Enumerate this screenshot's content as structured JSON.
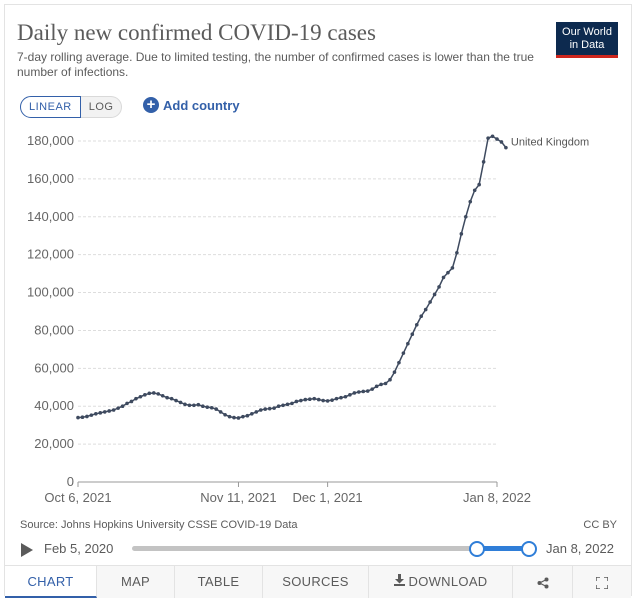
{
  "header": {
    "title": "Daily new confirmed COVID-19 cases",
    "subtitle": "7-day rolling average. Due to limited testing, the number of confirmed cases is lower than the true number of infections.",
    "logo_line1": "Our World",
    "logo_line2": "in Data"
  },
  "controls": {
    "linear_label": "LINEAR",
    "log_label": "LOG",
    "add_country_label": "Add country",
    "selected_scale": "linear"
  },
  "footer": {
    "source": "Source: Johns Hopkins University CSSE COVID-19 Data",
    "license": "CC BY"
  },
  "timeline": {
    "start_label": "Feb 5, 2020",
    "end_label": "Jan 8, 2022",
    "selected_start_fraction": 0.87,
    "selected_end_fraction": 1.0
  },
  "tabs": [
    {
      "label": "CHART",
      "active": true,
      "icon": ""
    },
    {
      "label": "MAP",
      "active": false,
      "icon": ""
    },
    {
      "label": "TABLE",
      "active": false,
      "icon": ""
    },
    {
      "label": "SOURCES",
      "active": false,
      "icon": ""
    },
    {
      "label": "DOWNLOAD",
      "active": false,
      "icon": "download-icon"
    },
    {
      "label": "",
      "active": false,
      "icon": "share-icon"
    },
    {
      "label": "",
      "active": false,
      "icon": "fullscreen-icon"
    }
  ],
  "colors": {
    "line": "#3e4a5f",
    "accent": "#3360a9",
    "logo_bg": "#0d2a4f",
    "logo_bar": "#ce261e",
    "timeline": "#2f7ed8"
  },
  "chart_data": {
    "type": "line",
    "title": "Daily new confirmed COVID-19 cases",
    "xlabel": "",
    "ylabel": "",
    "ylim": [
      0,
      180000
    ],
    "y_ticks": [
      0,
      20000,
      40000,
      60000,
      80000,
      100000,
      120000,
      140000,
      160000,
      180000
    ],
    "y_tick_labels": [
      "0",
      "20,000",
      "40,000",
      "60,000",
      "80,000",
      "100,000",
      "120,000",
      "140,000",
      "160,000",
      "180,000"
    ],
    "x_tick_labels": [
      {
        "date": "2021-10-06",
        "label": "Oct 6, 2021"
      },
      {
        "date": "2021-11-11",
        "label": "Nov 11, 2021"
      },
      {
        "date": "2021-12-01",
        "label": "Dec 1, 2021"
      },
      {
        "date": "2022-01-08",
        "label": "Jan 8, 2022"
      }
    ],
    "x_range": [
      "2021-10-06",
      "2022-01-08"
    ],
    "grid": "horizontal",
    "series": [
      {
        "name": "United Kingdom",
        "points": [
          [
            "2021-10-06",
            34000
          ],
          [
            "2021-10-07",
            34200
          ],
          [
            "2021-10-08",
            34600
          ],
          [
            "2021-10-09",
            35300
          ],
          [
            "2021-10-10",
            36000
          ],
          [
            "2021-10-11",
            36500
          ],
          [
            "2021-10-12",
            37000
          ],
          [
            "2021-10-13",
            37500
          ],
          [
            "2021-10-14",
            38000
          ],
          [
            "2021-10-15",
            39000
          ],
          [
            "2021-10-16",
            40000
          ],
          [
            "2021-10-17",
            41500
          ],
          [
            "2021-10-18",
            42500
          ],
          [
            "2021-10-19",
            44000
          ],
          [
            "2021-10-20",
            45000
          ],
          [
            "2021-10-21",
            46000
          ],
          [
            "2021-10-22",
            46800
          ],
          [
            "2021-10-23",
            47000
          ],
          [
            "2021-10-24",
            46500
          ],
          [
            "2021-10-25",
            45500
          ],
          [
            "2021-10-26",
            44500
          ],
          [
            "2021-10-27",
            44000
          ],
          [
            "2021-10-28",
            43000
          ],
          [
            "2021-10-29",
            42000
          ],
          [
            "2021-10-30",
            41000
          ],
          [
            "2021-10-31",
            40500
          ],
          [
            "2021-11-01",
            40500
          ],
          [
            "2021-11-02",
            40800
          ],
          [
            "2021-11-03",
            40000
          ],
          [
            "2021-11-04",
            39500
          ],
          [
            "2021-11-05",
            39200
          ],
          [
            "2021-11-06",
            38500
          ],
          [
            "2021-11-07",
            37000
          ],
          [
            "2021-11-08",
            35500
          ],
          [
            "2021-11-09",
            34500
          ],
          [
            "2021-11-10",
            34000
          ],
          [
            "2021-11-11",
            33800
          ],
          [
            "2021-11-12",
            34500
          ],
          [
            "2021-11-13",
            35000
          ],
          [
            "2021-11-14",
            36000
          ],
          [
            "2021-11-15",
            37000
          ],
          [
            "2021-11-16",
            38000
          ],
          [
            "2021-11-17",
            38500
          ],
          [
            "2021-11-18",
            38700
          ],
          [
            "2021-11-19",
            39000
          ],
          [
            "2021-11-20",
            40000
          ],
          [
            "2021-11-21",
            40500
          ],
          [
            "2021-11-22",
            41000
          ],
          [
            "2021-11-23",
            41500
          ],
          [
            "2021-11-24",
            42500
          ],
          [
            "2021-11-25",
            43000
          ],
          [
            "2021-11-26",
            43500
          ],
          [
            "2021-11-27",
            43700
          ],
          [
            "2021-11-28",
            44000
          ],
          [
            "2021-11-29",
            43500
          ],
          [
            "2021-11-30",
            43000
          ],
          [
            "2021-12-01",
            42800
          ],
          [
            "2021-12-02",
            43200
          ],
          [
            "2021-12-03",
            44000
          ],
          [
            "2021-12-04",
            44500
          ],
          [
            "2021-12-05",
            45000
          ],
          [
            "2021-12-06",
            46000
          ],
          [
            "2021-12-07",
            47000
          ],
          [
            "2021-12-08",
            47500
          ],
          [
            "2021-12-09",
            47800
          ],
          [
            "2021-12-10",
            48000
          ],
          [
            "2021-12-11",
            49000
          ],
          [
            "2021-12-12",
            50500
          ],
          [
            "2021-12-13",
            51500
          ],
          [
            "2021-12-14",
            52000
          ],
          [
            "2021-12-15",
            54000
          ],
          [
            "2021-12-16",
            58000
          ],
          [
            "2021-12-17",
            63000
          ],
          [
            "2021-12-18",
            68000
          ],
          [
            "2021-12-19",
            73000
          ],
          [
            "2021-12-20",
            78000
          ],
          [
            "2021-12-21",
            83000
          ],
          [
            "2021-12-22",
            87500
          ],
          [
            "2021-12-23",
            91000
          ],
          [
            "2021-12-24",
            95000
          ],
          [
            "2021-12-25",
            99000
          ],
          [
            "2021-12-26",
            103000
          ],
          [
            "2021-12-27",
            108000
          ],
          [
            "2021-12-28",
            110500
          ],
          [
            "2021-12-29",
            113000
          ],
          [
            "2021-12-30",
            121000
          ],
          [
            "2021-12-31",
            131000
          ],
          [
            "2022-01-01",
            140000
          ],
          [
            "2022-01-02",
            148000
          ],
          [
            "2022-01-03",
            154000
          ],
          [
            "2022-01-04",
            157000
          ],
          [
            "2022-01-05",
            169000
          ],
          [
            "2022-01-06",
            181500
          ],
          [
            "2022-01-07",
            182500
          ],
          [
            "2022-01-08",
            181000
          ],
          [
            "2022-01-09",
            179500
          ],
          [
            "2022-01-10",
            176500
          ]
        ]
      }
    ]
  }
}
